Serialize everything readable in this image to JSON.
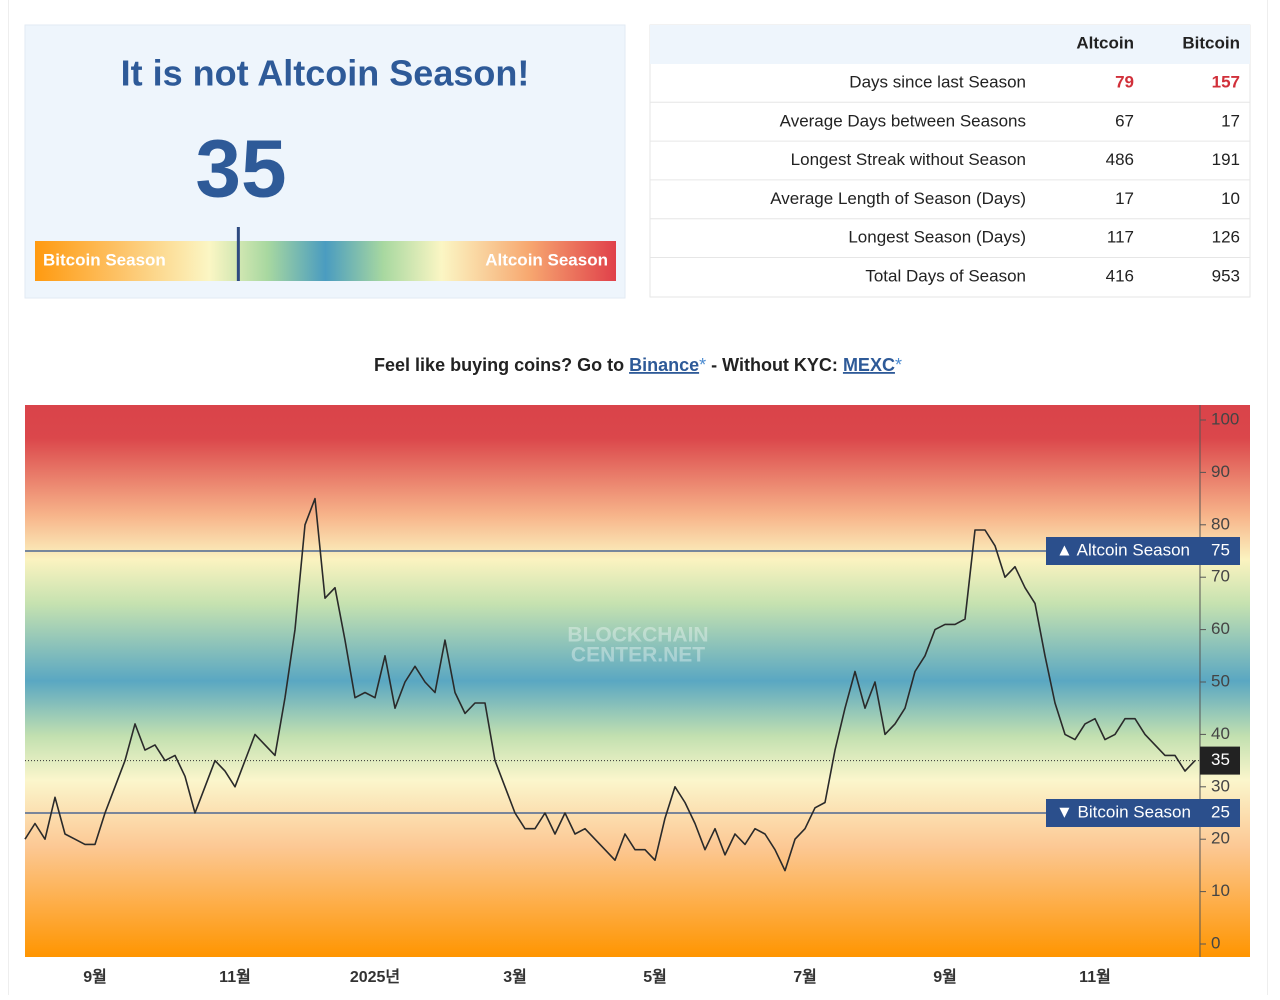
{
  "header": {
    "title": "It is not Altcoin Season!"
  },
  "gauge": {
    "value": 35,
    "min": 0,
    "max": 100,
    "left_label": "Bitcoin Season",
    "right_label": "Altcoin Season"
  },
  "stats": {
    "columns": [
      "Altcoin",
      "Bitcoin"
    ],
    "rows": [
      {
        "label": "Days since last Season",
        "values": [
          79,
          157
        ]
      },
      {
        "label": "Average Days between Seasons",
        "values": [
          67,
          17
        ]
      },
      {
        "label": "Longest Streak without Season",
        "values": [
          486,
          191
        ]
      },
      {
        "label": "Average Length of Season (Days)",
        "values": [
          17,
          10
        ]
      },
      {
        "label": "Longest Season (Days)",
        "values": [
          117,
          126
        ]
      },
      {
        "label": "Total Days of Season",
        "values": [
          416,
          953
        ]
      }
    ]
  },
  "promo": {
    "text1": "Feel like buying coins? Go to ",
    "link1": "Binance",
    "star1": "*",
    "text2": " - Without KYC: ",
    "link2": "MEXC",
    "star2": "*"
  },
  "chart_data": {
    "type": "line",
    "color": "#2a2a2a",
    "watermark": [
      "BLOCKCHAIN",
      "CENTER.NET"
    ],
    "categories": [
      null,
      null,
      null,
      null,
      null,
      null,
      null,
      "9월",
      null,
      null,
      null,
      null,
      null,
      null,
      null,
      null,
      null,
      null,
      null,
      null,
      null,
      "11월",
      null,
      null,
      null,
      null,
      null,
      null,
      null,
      null,
      null,
      null,
      null,
      null,
      null,
      "2025년",
      null,
      null,
      null,
      null,
      null,
      null,
      null,
      null,
      null,
      null,
      null,
      null,
      null,
      "3월",
      null,
      null,
      null,
      null,
      null,
      null,
      null,
      null,
      null,
      null,
      null,
      null,
      null,
      "5월",
      null,
      null,
      null,
      null,
      null,
      null,
      null,
      null,
      null,
      null,
      null,
      null,
      null,
      null,
      "7월",
      null,
      null,
      null,
      null,
      null,
      null,
      null,
      null,
      null,
      null,
      null,
      null,
      null,
      "9월",
      null,
      null,
      null,
      null,
      null,
      null,
      null,
      null,
      null,
      null,
      null,
      null,
      null,
      null,
      "11월",
      null,
      null,
      null,
      null,
      null,
      null,
      null,
      null,
      null,
      null
    ],
    "values": [
      20,
      23,
      20,
      28,
      21,
      20,
      19,
      19,
      25,
      30,
      35,
      42,
      37,
      38,
      35,
      36,
      32,
      25,
      30,
      35,
      33,
      30,
      35,
      40,
      38,
      36,
      47,
      60,
      80,
      85,
      66,
      68,
      58,
      47,
      48,
      47,
      55,
      45,
      50,
      53,
      50,
      48,
      58,
      48,
      44,
      46,
      46,
      35,
      30,
      25,
      22,
      22,
      25,
      21,
      25,
      21,
      22,
      20,
      18,
      16,
      21,
      18,
      18,
      16,
      24,
      30,
      27,
      23,
      18,
      22,
      17,
      21,
      19,
      22,
      21,
      18,
      14,
      20,
      22,
      26,
      27,
      37,
      45,
      52,
      45,
      50,
      40,
      42,
      45,
      52,
      55,
      60,
      61,
      61,
      62,
      79,
      79,
      76,
      70,
      72,
      68,
      65,
      55,
      46,
      40,
      39,
      42,
      43,
      39,
      40,
      43,
      43,
      40,
      38,
      36,
      36,
      33,
      35
    ],
    "ylim": [
      0,
      100
    ],
    "yticks": [
      0,
      10,
      20,
      30,
      40,
      50,
      60,
      70,
      80,
      90,
      100
    ],
    "thresholds": [
      {
        "label": "▲ Altcoin Season",
        "value": 75
      },
      {
        "label": "▼ Bitcoin Season",
        "value": 25
      }
    ],
    "current": 35
  }
}
